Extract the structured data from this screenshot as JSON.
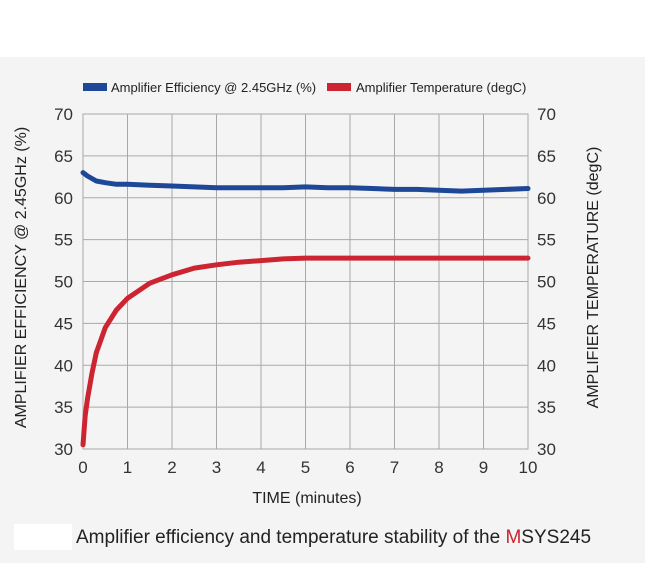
{
  "colors": {
    "efficiency": "#1f4797",
    "temperature": "#cd2431",
    "grid": "#a9a9a9",
    "caption_accent": "#c8252f"
  },
  "caption": {
    "prefix": "Amplifier efficiency and temperature stability of the ",
    "accent": "M",
    "suffix": "SYS245"
  },
  "chart_data": {
    "type": "line",
    "xlabel": "TIME (minutes)",
    "ylabel_left": "AMPLIFIER EFFICIENCY @ 2.45GHz (%)",
    "ylabel_right": "AMPLIFIER TEMPERATURE (degC)",
    "xlim": [
      0,
      10
    ],
    "ylim": [
      30,
      70
    ],
    "x_ticks": [
      "0",
      "1",
      "2",
      "3",
      "4",
      "5",
      "6",
      "7",
      "8",
      "9",
      "10"
    ],
    "y_ticks": [
      "30",
      "35",
      "40",
      "45",
      "50",
      "55",
      "60",
      "65",
      "70"
    ],
    "grid": true,
    "legend_position": "top",
    "series": [
      {
        "name": "Amplifier Efficiency @ 2.45GHz (%)",
        "axis": "left",
        "color_key": "efficiency",
        "x": [
          0,
          0.1,
          0.3,
          0.5,
          0.75,
          1,
          1.5,
          2,
          2.5,
          3,
          3.5,
          4,
          4.5,
          5,
          5.5,
          6,
          6.5,
          7,
          7.5,
          8,
          8.5,
          9,
          9.5,
          10
        ],
        "y": [
          63.0,
          62.6,
          62.0,
          61.8,
          61.6,
          61.6,
          61.5,
          61.4,
          61.3,
          61.2,
          61.2,
          61.2,
          61.2,
          61.3,
          61.2,
          61.2,
          61.1,
          61.0,
          61.0,
          60.9,
          60.8,
          60.9,
          61.0,
          61.1
        ]
      },
      {
        "name": "Amplifier Temperature (degC)",
        "axis": "right",
        "color_key": "temperature",
        "x": [
          0,
          0.05,
          0.1,
          0.2,
          0.3,
          0.5,
          0.75,
          1,
          1.5,
          2,
          2.5,
          3,
          3.5,
          4,
          4.5,
          5,
          6,
          7,
          8,
          9,
          10
        ],
        "y": [
          30.5,
          34.0,
          36.0,
          39.0,
          41.5,
          44.5,
          46.6,
          48.0,
          49.8,
          50.8,
          51.6,
          52.0,
          52.3,
          52.5,
          52.7,
          52.8,
          52.8,
          52.8,
          52.8,
          52.8,
          52.8
        ]
      }
    ]
  }
}
